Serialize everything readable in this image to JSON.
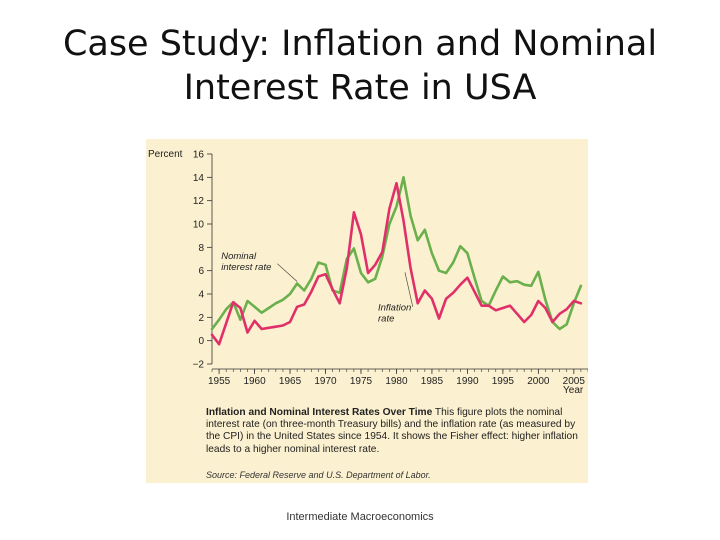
{
  "slide": {
    "title_line1": "Case Study: Inflation and Nominal",
    "title_line2": "Interest Rate in USA",
    "footer": "Intermediate Macroeconomics"
  },
  "figure": {
    "caption_bold": "Inflation and Nominal Interest Rates Over Time",
    "caption_text": "This figure plots the nominal interest rate (on three-month Treasury bills) and the inflation rate (as measured by the CPI) in the United States since 1954. It shows the Fisher effect: higher inflation leads to a higher nominal interest rate.",
    "source": "Source: Federal Reserve and U.S. Department of Labor."
  },
  "chart_data": {
    "type": "line",
    "ylabel": "Percent",
    "xlabel": "Year",
    "ylim": [
      -2,
      16
    ],
    "yticks": [
      -2,
      0,
      2,
      4,
      6,
      8,
      10,
      12,
      14,
      16
    ],
    "ytick_labels": [
      "−2",
      "0",
      "2",
      "4",
      "6",
      "8",
      "10",
      "12",
      "14",
      "16"
    ],
    "xlim": [
      1954,
      2007
    ],
    "xticks": [
      1955,
      1960,
      1965,
      1970,
      1975,
      1980,
      1985,
      1990,
      1995,
      2000,
      2005
    ],
    "colors": {
      "nominal": "#6ab04c",
      "inflation": "#e0306a",
      "background": "#fbf0cf"
    },
    "series": [
      {
        "name": "Nominal interest rate",
        "label_lines": [
          "Nominal",
          "interest rate"
        ],
        "color": "#6ab04c",
        "x": [
          1954,
          1955,
          1956,
          1957,
          1958,
          1959,
          1960,
          1961,
          1962,
          1963,
          1964,
          1965,
          1966,
          1967,
          1968,
          1969,
          1970,
          1971,
          1972,
          1973,
          1974,
          1975,
          1976,
          1977,
          1978,
          1979,
          1980,
          1981,
          1982,
          1983,
          1984,
          1985,
          1986,
          1987,
          1988,
          1989,
          1990,
          1991,
          1992,
          1993,
          1994,
          1995,
          1996,
          1997,
          1998,
          1999,
          2000,
          2001,
          2002,
          2003,
          2004,
          2005,
          2006
        ],
        "y": [
          1.0,
          1.8,
          2.7,
          3.3,
          1.8,
          3.4,
          2.9,
          2.4,
          2.8,
          3.2,
          3.5,
          4.0,
          4.9,
          4.3,
          5.3,
          6.7,
          6.5,
          4.3,
          4.1,
          7.0,
          7.9,
          5.8,
          5.0,
          5.3,
          7.2,
          10.0,
          11.5,
          14.0,
          10.7,
          8.6,
          9.5,
          7.5,
          6.0,
          5.8,
          6.7,
          8.1,
          7.5,
          5.4,
          3.4,
          3.0,
          4.3,
          5.5,
          5.0,
          5.1,
          4.8,
          4.7,
          5.9,
          3.5,
          1.6,
          1.0,
          1.4,
          3.2,
          4.7
        ]
      },
      {
        "name": "Inflation rate",
        "label_lines": [
          "Inflation",
          "rate"
        ],
        "color": "#e0306a",
        "x": [
          1954,
          1955,
          1956,
          1957,
          1958,
          1959,
          1960,
          1961,
          1962,
          1963,
          1964,
          1965,
          1966,
          1967,
          1968,
          1969,
          1970,
          1971,
          1972,
          1973,
          1974,
          1975,
          1976,
          1977,
          1978,
          1979,
          1980,
          1981,
          1982,
          1983,
          1984,
          1985,
          1986,
          1987,
          1988,
          1989,
          1990,
          1991,
          1992,
          1993,
          1994,
          1995,
          1996,
          1997,
          1998,
          1999,
          2000,
          2001,
          2002,
          2003,
          2004,
          2005,
          2006
        ],
        "y": [
          0.5,
          -0.3,
          1.5,
          3.3,
          2.8,
          0.7,
          1.7,
          1.0,
          1.1,
          1.2,
          1.3,
          1.6,
          2.9,
          3.1,
          4.2,
          5.5,
          5.7,
          4.4,
          3.2,
          6.2,
          11.0,
          9.1,
          5.8,
          6.5,
          7.6,
          11.3,
          13.5,
          10.3,
          6.2,
          3.2,
          4.3,
          3.6,
          1.9,
          3.6,
          4.1,
          4.8,
          5.4,
          4.2,
          3.0,
          3.0,
          2.6,
          2.8,
          3.0,
          2.3,
          1.6,
          2.2,
          3.4,
          2.8,
          1.6,
          2.3,
          2.7,
          3.4,
          3.2
        ]
      }
    ]
  }
}
